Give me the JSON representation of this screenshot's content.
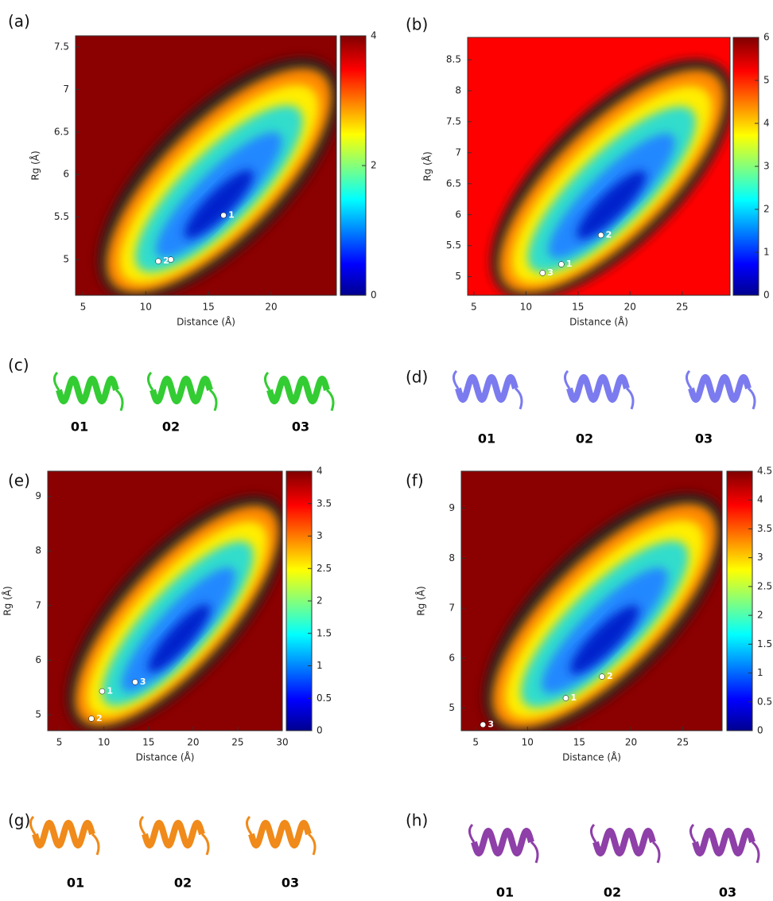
{
  "chart_data": [
    {
      "type": "heatmap",
      "panel": "(a)",
      "xlabel": "Distance (Å)",
      "ylabel": "Rg (Å)",
      "background": "#8b0000",
      "xlim": [
        4.4,
        25.2
      ],
      "ylim": [
        4.58,
        7.63
      ],
      "xticks": [
        5,
        10,
        15,
        20
      ],
      "yticks": [
        5,
        5.5,
        6,
        6.5,
        7,
        7.5
      ],
      "clim": [
        0,
        4
      ],
      "cticks": [
        0,
        2,
        4
      ],
      "points": {
        "x": [
          16.2,
          11.0,
          12.0
        ],
        "y": [
          5.52,
          4.98,
          5.0
        ],
        "labels": [
          "1",
          "2",
          null
        ]
      }
    },
    {
      "type": "heatmap",
      "panel": "(b)",
      "xlabel": "Distance (Å)",
      "ylabel": "Rg (Å)",
      "background": "#ff0000",
      "xlim": [
        4.4,
        29.6
      ],
      "ylim": [
        4.7,
        8.86
      ],
      "xticks": [
        5,
        10,
        15,
        20,
        25
      ],
      "yticks": [
        5,
        5.5,
        6,
        6.5,
        7,
        7.5,
        8,
        8.5
      ],
      "clim": [
        0,
        6
      ],
      "cticks": [
        0,
        1,
        2,
        3,
        4,
        5,
        6
      ],
      "points": {
        "x": [
          13.4,
          17.2,
          11.6
        ],
        "y": [
          5.2,
          5.67,
          5.06
        ],
        "labels": [
          "1",
          "2",
          "3"
        ]
      }
    },
    {
      "type": "heatmap",
      "panel": "(e)",
      "xlabel": "Distance (Å)",
      "ylabel": "Rg (Å)",
      "background": "#8b0000",
      "xlim": [
        3.7,
        30
      ],
      "ylim": [
        4.71,
        9.46
      ],
      "xticks": [
        5,
        10,
        15,
        20,
        25,
        30
      ],
      "yticks": [
        5,
        6,
        7,
        8,
        9
      ],
      "clim": [
        0,
        4
      ],
      "cticks": [
        0,
        0.5,
        1,
        1.5,
        2,
        2.5,
        3,
        3.5,
        4
      ],
      "points": {
        "x": [
          9.8,
          8.6,
          13.5
        ],
        "y": [
          5.43,
          4.93,
          5.6
        ],
        "labels": [
          "1",
          "2",
          "3"
        ]
      }
    },
    {
      "type": "heatmap",
      "panel": "(f)",
      "xlabel": "Distance (Å)",
      "ylabel": "Rg (Å)",
      "background": "#8b0000",
      "xlim": [
        3.6,
        28.8
      ],
      "ylim": [
        4.55,
        9.74
      ],
      "xticks": [
        5,
        10,
        15,
        20,
        25
      ],
      "yticks": [
        5,
        6,
        7,
        8,
        9
      ],
      "clim": [
        0,
        4.5
      ],
      "cticks": [
        0,
        0.5,
        1,
        1.5,
        2,
        2.5,
        3,
        3.5,
        4,
        4.5
      ],
      "points": {
        "x": [
          13.7,
          17.2,
          5.7
        ],
        "y": [
          5.2,
          5.63,
          4.67
        ],
        "labels": [
          "1",
          "2",
          "3"
        ]
      }
    }
  ],
  "structures": [
    {
      "panel": "(c)",
      "color": "#33cc33",
      "labels": [
        "01",
        "02",
        "03"
      ]
    },
    {
      "panel": "(d)",
      "color": "#7b7bef",
      "labels": [
        "01",
        "02",
        "03"
      ]
    },
    {
      "panel": "(g)",
      "color": "#f08a1a",
      "labels": [
        "01",
        "02",
        "03"
      ]
    },
    {
      "panel": "(h)",
      "color": "#8e3fa8",
      "labels": [
        "01",
        "02",
        "03"
      ]
    }
  ]
}
